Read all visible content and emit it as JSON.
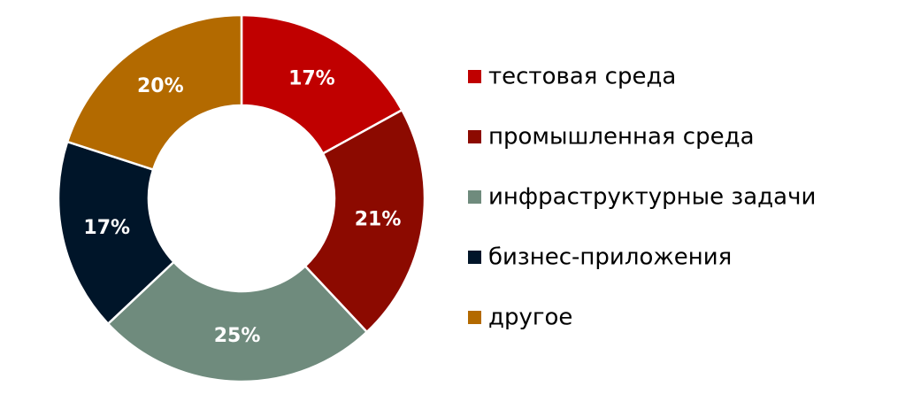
{
  "chart_data": {
    "type": "donut",
    "categories": [
      "тестовая среда",
      "промышленная среда",
      "инфраструктурные задачи",
      "бизнес-приложения",
      "другое"
    ],
    "values": [
      17,
      21,
      25,
      17,
      20
    ],
    "value_labels": [
      "17%",
      "21%",
      "25%",
      "17%",
      "20%"
    ],
    "colors": [
      "#c00000",
      "#8c0a00",
      "#6f8b7d",
      "#001529",
      "#b36a00"
    ]
  }
}
